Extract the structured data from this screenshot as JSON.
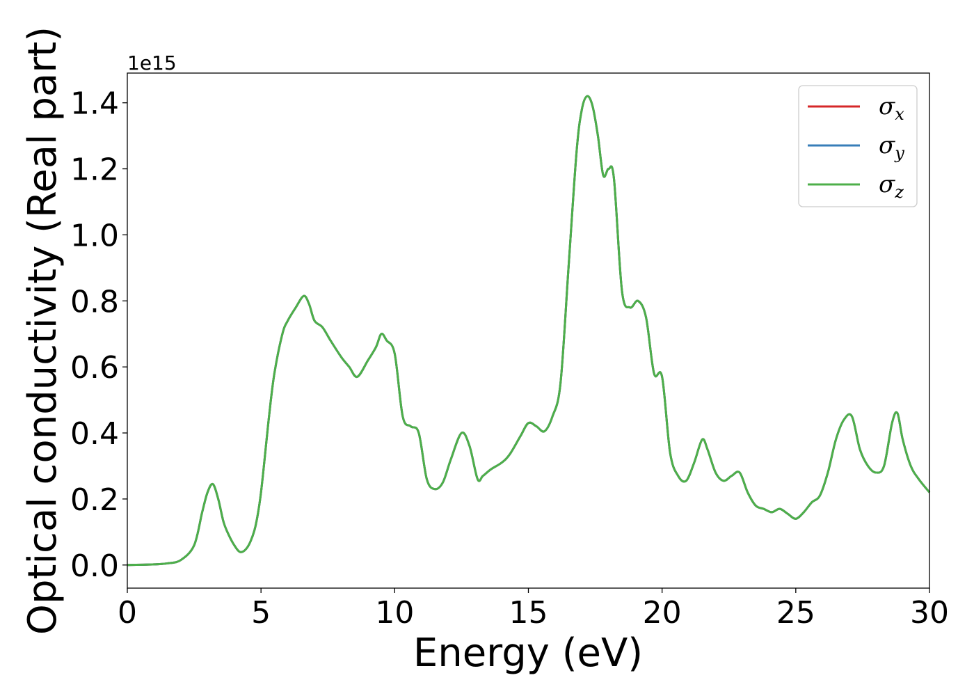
{
  "chart_data": {
    "type": "line",
    "title": "",
    "xlabel": "Energy (eV)",
    "ylabel": "Optical conductivity (Real part)",
    "y_offset_text": "1e15",
    "xlim": [
      0,
      30
    ],
    "ylim": [
      -0.07,
      1.49
    ],
    "xticks": [
      0,
      5,
      10,
      15,
      20,
      25,
      30
    ],
    "xtick_labels": [
      "0",
      "5",
      "10",
      "15",
      "20",
      "25",
      "30"
    ],
    "yticks": [
      0.0,
      0.2,
      0.4,
      0.6,
      0.8,
      1.0,
      1.2,
      1.4
    ],
    "ytick_labels": [
      "0.0",
      "0.2",
      "0.4",
      "0.6",
      "0.8",
      "1.0",
      "1.2",
      "1.4"
    ],
    "grid": false,
    "legend_position": "top-right",
    "x": [
      0,
      1,
      1.5,
      2,
      2.5,
      2.8,
      3.0,
      3.2,
      3.4,
      3.6,
      3.8,
      4.0,
      4.2,
      4.4,
      4.6,
      4.8,
      5.0,
      5.3,
      5.5,
      5.8,
      6.0,
      6.3,
      6.6,
      6.8,
      7.0,
      7.3,
      7.6,
      8.0,
      8.3,
      8.6,
      9.0,
      9.3,
      9.5,
      9.7,
      10.0,
      10.3,
      10.6,
      10.9,
      11.2,
      11.5,
      11.8,
      12.1,
      12.5,
      12.8,
      13.1,
      13.3,
      13.6,
      14.0,
      14.3,
      14.7,
      15.0,
      15.3,
      15.6,
      15.9,
      16.2,
      16.5,
      16.8,
      17.0,
      17.2,
      17.4,
      17.6,
      17.8,
      18.0,
      18.2,
      18.5,
      18.8,
      19.1,
      19.4,
      19.7,
      20.0,
      20.3,
      20.6,
      20.9,
      21.2,
      21.5,
      21.7,
      22.0,
      22.3,
      22.6,
      22.9,
      23.2,
      23.5,
      23.8,
      24.1,
      24.4,
      24.7,
      25.0,
      25.3,
      25.6,
      25.9,
      26.2,
      26.5,
      26.8,
      27.1,
      27.4,
      27.7,
      28.0,
      28.3,
      28.6,
      28.8,
      29.0,
      29.3,
      29.6,
      30.0
    ],
    "series": [
      {
        "name": "σx",
        "color": "#d62728",
        "values": [
          0.0,
          0.002,
          0.005,
          0.015,
          0.06,
          0.16,
          0.22,
          0.245,
          0.2,
          0.13,
          0.09,
          0.06,
          0.04,
          0.045,
          0.07,
          0.12,
          0.22,
          0.45,
          0.58,
          0.7,
          0.74,
          0.78,
          0.815,
          0.79,
          0.74,
          0.72,
          0.68,
          0.63,
          0.6,
          0.57,
          0.62,
          0.66,
          0.7,
          0.68,
          0.64,
          0.45,
          0.42,
          0.4,
          0.26,
          0.23,
          0.25,
          0.32,
          0.4,
          0.36,
          0.26,
          0.27,
          0.29,
          0.31,
          0.335,
          0.39,
          0.43,
          0.42,
          0.405,
          0.45,
          0.55,
          0.9,
          1.25,
          1.38,
          1.42,
          1.39,
          1.3,
          1.18,
          1.2,
          1.17,
          0.83,
          0.78,
          0.8,
          0.75,
          0.58,
          0.57,
          0.34,
          0.27,
          0.255,
          0.31,
          0.38,
          0.35,
          0.28,
          0.255,
          0.27,
          0.28,
          0.22,
          0.18,
          0.17,
          0.16,
          0.17,
          0.155,
          0.14,
          0.16,
          0.19,
          0.21,
          0.28,
          0.38,
          0.44,
          0.45,
          0.35,
          0.3,
          0.28,
          0.3,
          0.43,
          0.46,
          0.38,
          0.3,
          0.26,
          0.22
        ]
      },
      {
        "name": "σy",
        "color": "#377eb8",
        "values": [
          0.0,
          0.002,
          0.005,
          0.015,
          0.06,
          0.16,
          0.22,
          0.245,
          0.2,
          0.13,
          0.09,
          0.06,
          0.04,
          0.045,
          0.07,
          0.12,
          0.22,
          0.45,
          0.58,
          0.7,
          0.74,
          0.78,
          0.815,
          0.79,
          0.74,
          0.72,
          0.68,
          0.63,
          0.6,
          0.57,
          0.62,
          0.66,
          0.7,
          0.68,
          0.64,
          0.45,
          0.42,
          0.4,
          0.26,
          0.23,
          0.25,
          0.32,
          0.4,
          0.36,
          0.26,
          0.27,
          0.29,
          0.31,
          0.335,
          0.39,
          0.43,
          0.42,
          0.405,
          0.45,
          0.55,
          0.9,
          1.25,
          1.38,
          1.42,
          1.39,
          1.3,
          1.18,
          1.2,
          1.17,
          0.83,
          0.78,
          0.8,
          0.75,
          0.58,
          0.57,
          0.34,
          0.27,
          0.255,
          0.31,
          0.38,
          0.35,
          0.28,
          0.255,
          0.27,
          0.28,
          0.22,
          0.18,
          0.17,
          0.16,
          0.17,
          0.155,
          0.14,
          0.16,
          0.19,
          0.21,
          0.28,
          0.38,
          0.44,
          0.45,
          0.35,
          0.3,
          0.28,
          0.3,
          0.43,
          0.46,
          0.38,
          0.3,
          0.26,
          0.22
        ]
      },
      {
        "name": "σz",
        "color": "#4daf4a",
        "values": [
          0.0,
          0.002,
          0.005,
          0.015,
          0.06,
          0.16,
          0.22,
          0.245,
          0.2,
          0.13,
          0.09,
          0.06,
          0.04,
          0.045,
          0.07,
          0.12,
          0.22,
          0.45,
          0.58,
          0.7,
          0.74,
          0.78,
          0.815,
          0.79,
          0.74,
          0.72,
          0.68,
          0.63,
          0.6,
          0.57,
          0.62,
          0.66,
          0.7,
          0.68,
          0.64,
          0.45,
          0.42,
          0.4,
          0.26,
          0.23,
          0.25,
          0.32,
          0.4,
          0.36,
          0.26,
          0.27,
          0.29,
          0.31,
          0.335,
          0.39,
          0.43,
          0.42,
          0.405,
          0.45,
          0.55,
          0.9,
          1.25,
          1.38,
          1.42,
          1.39,
          1.3,
          1.18,
          1.2,
          1.17,
          0.83,
          0.78,
          0.8,
          0.75,
          0.58,
          0.57,
          0.34,
          0.27,
          0.255,
          0.31,
          0.38,
          0.35,
          0.28,
          0.255,
          0.27,
          0.28,
          0.22,
          0.18,
          0.17,
          0.16,
          0.17,
          0.155,
          0.14,
          0.16,
          0.19,
          0.21,
          0.28,
          0.38,
          0.44,
          0.45,
          0.35,
          0.3,
          0.28,
          0.3,
          0.43,
          0.46,
          0.38,
          0.3,
          0.26,
          0.22
        ]
      }
    ]
  }
}
